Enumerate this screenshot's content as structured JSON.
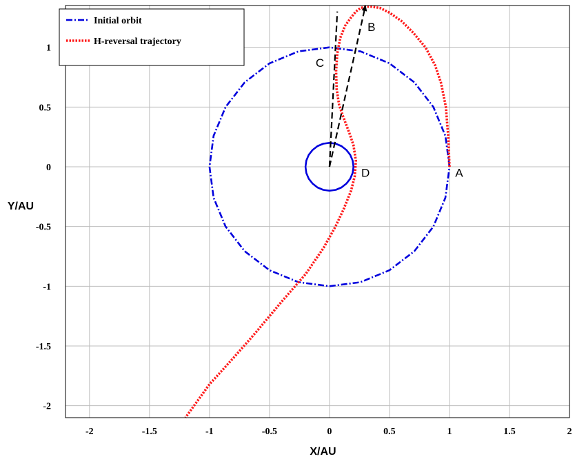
{
  "chart_data": {
    "type": "line",
    "title": "",
    "xlabel": "X/AU",
    "ylabel": "Y/AU",
    "xlim": [
      -2.2,
      2
    ],
    "ylim": [
      -2.1,
      1.35
    ],
    "grid": true,
    "legend_position": "top-left",
    "x_ticks": [
      -2,
      -1.5,
      -1,
      -0.5,
      0,
      0.5,
      1,
      1.5,
      2
    ],
    "x_tick_labels": [
      "-2",
      "-1.5",
      "-1",
      "-0.5",
      "0",
      "0.5",
      "1",
      "1.5",
      "2"
    ],
    "y_ticks": [
      -2,
      -1.5,
      -1,
      -0.5,
      0,
      0.5,
      1
    ],
    "y_tick_labels": [
      "-2",
      "-1.5",
      "-1",
      "-0.5",
      "0",
      "0.5",
      "1"
    ],
    "series": [
      {
        "name": "Initial orbit",
        "color": "#0000dd",
        "style": "dash-dot",
        "x": [
          1,
          0.966,
          0.866,
          0.707,
          0.5,
          0.259,
          0,
          -0.259,
          -0.5,
          -0.707,
          -0.866,
          -0.966,
          -1,
          -0.966,
          -0.866,
          -0.707,
          -0.5,
          -0.259,
          0,
          0.259,
          0.5,
          0.707,
          0.866,
          0.966,
          1
        ],
        "y": [
          0,
          0.259,
          0.5,
          0.707,
          0.866,
          0.966,
          1,
          0.966,
          0.866,
          0.707,
          0.5,
          0.259,
          0,
          -0.259,
          -0.5,
          -0.707,
          -0.866,
          -0.966,
          -1,
          -0.966,
          -0.866,
          -0.707,
          -0.5,
          -0.259,
          0
        ]
      },
      {
        "name": "H-reversal trajectory",
        "color": "#ff1a1a",
        "style": "dotted",
        "x": [
          1,
          0.99,
          0.97,
          0.93,
          0.88,
          0.8,
          0.7,
          0.6,
          0.5,
          0.42,
          0.35,
          0.3,
          0.26,
          0.22,
          0.18,
          0.13,
          0.09,
          0.065,
          0.055,
          0.06,
          0.08,
          0.11,
          0.14,
          0.17,
          0.2,
          0.22,
          0.21,
          0.18,
          0.12,
          0.05,
          -0.05,
          -0.2,
          -0.4,
          -0.6,
          -0.8,
          -1,
          -1.2
        ],
        "y": [
          0,
          0.25,
          0.5,
          0.7,
          0.85,
          1,
          1.12,
          1.22,
          1.29,
          1.33,
          1.34,
          1.34,
          1.33,
          1.3,
          1.25,
          1.18,
          1.08,
          0.95,
          0.8,
          0.65,
          0.52,
          0.43,
          0.35,
          0.27,
          0.18,
          0.05,
          -0.08,
          -0.2,
          -0.35,
          -0.5,
          -0.68,
          -0.9,
          -1.13,
          -1.37,
          -1.6,
          -1.82,
          -2.1
        ]
      },
      {
        "name": "",
        "color": "#0000dd",
        "style": "solid",
        "x": [
          0.2,
          0.193,
          0.173,
          0.141,
          0.1,
          0.052,
          0,
          -0.052,
          -0.1,
          -0.141,
          -0.173,
          -0.193,
          -0.2,
          -0.193,
          -0.173,
          -0.141,
          -0.1,
          -0.052,
          0,
          0.052,
          0.1,
          0.141,
          0.173,
          0.193,
          0.2
        ],
        "y": [
          0,
          0.052,
          0.1,
          0.141,
          0.173,
          0.193,
          0.2,
          0.193,
          0.173,
          0.141,
          0.1,
          0.052,
          0,
          -0.052,
          -0.1,
          -0.141,
          -0.173,
          -0.193,
          -0.2,
          -0.193,
          -0.173,
          -0.141,
          -0.1,
          -0.052,
          0
        ]
      }
    ],
    "dashed_lines": [
      {
        "x": [
          0,
          0.065
        ],
        "y": [
          0,
          1.3
        ]
      },
      {
        "x": [
          0,
          0.3
        ],
        "y": [
          0,
          1.35
        ],
        "arrow": true
      }
    ],
    "annotations": [
      {
        "text": "A",
        "x": 1.08,
        "y": -0.05
      },
      {
        "text": "B",
        "x": 0.35,
        "y": 1.17
      },
      {
        "text": "C",
        "x": -0.08,
        "y": 0.87
      },
      {
        "text": "D",
        "x": 0.3,
        "y": -0.05
      }
    ]
  }
}
